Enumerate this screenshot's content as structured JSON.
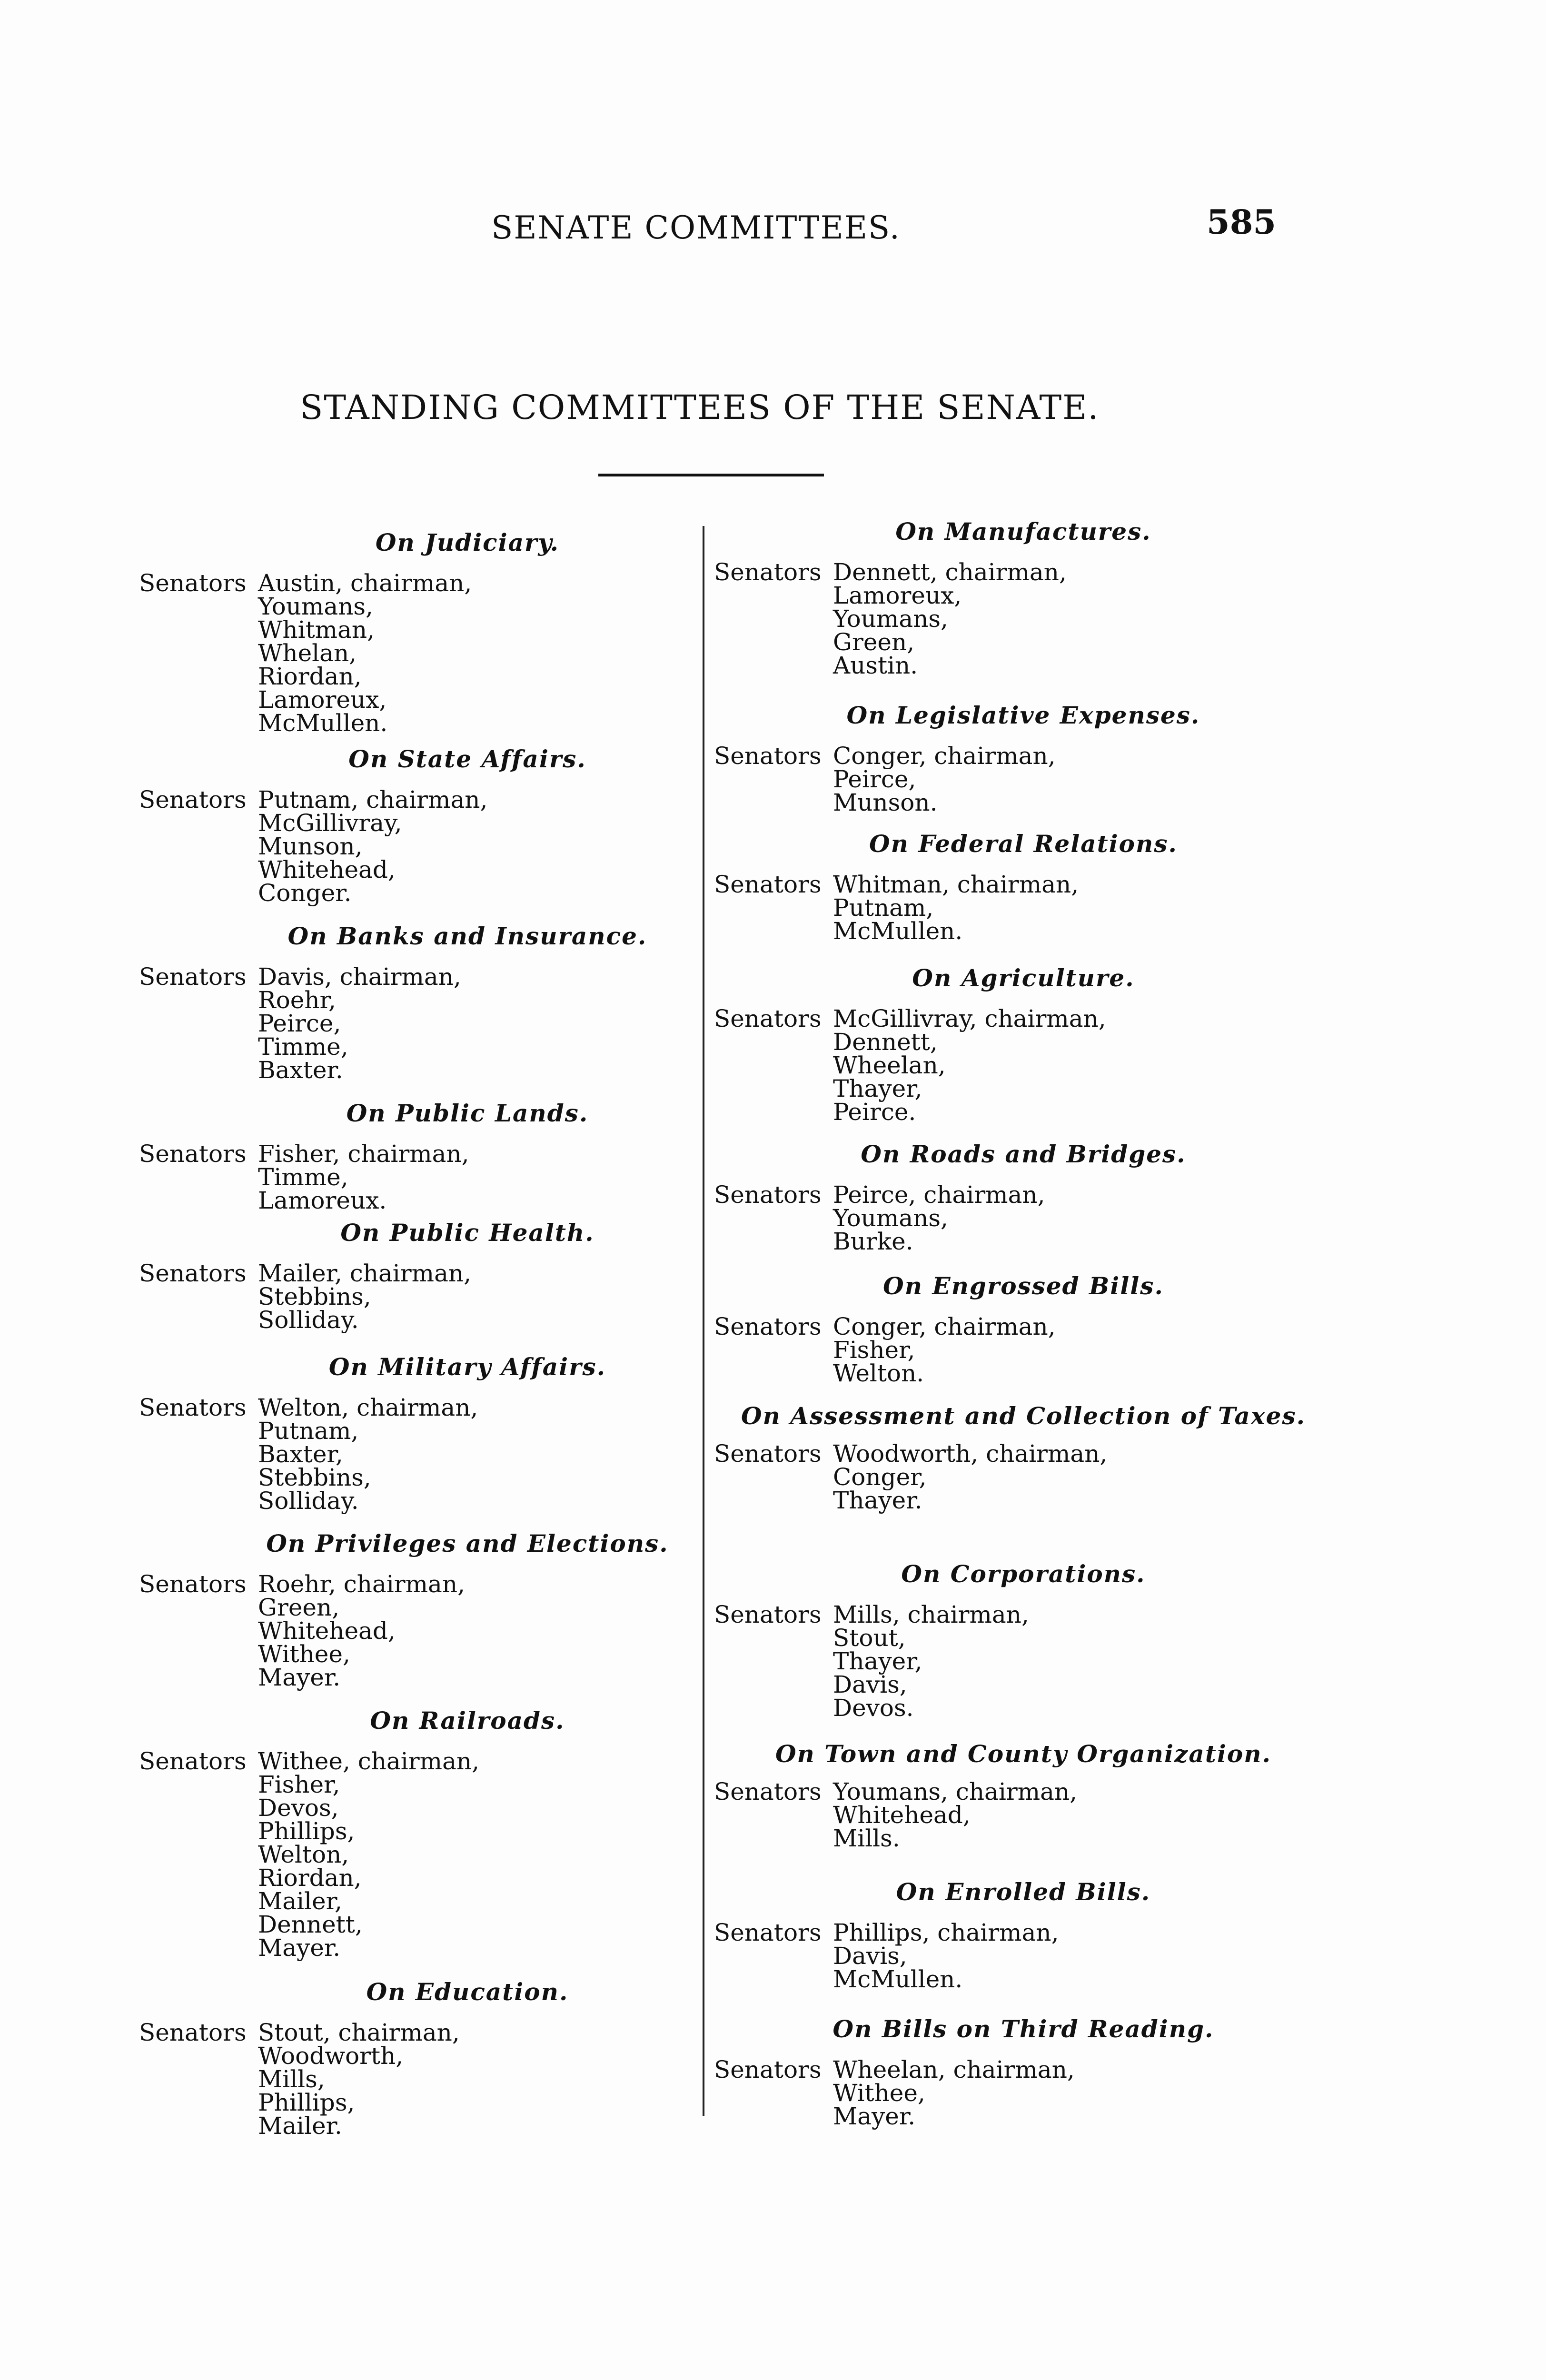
{
  "header": {
    "running_title": "SENATE COMMITTEES.",
    "page_number": "585"
  },
  "title": "STANDING COMMITTEES OF THE SENATE.",
  "senators_label": "Senators",
  "left_column": [
    {
      "heading": "On Judiciary.",
      "members": [
        "Austin, chairman,",
        "Youmans,",
        "Whitman,",
        "Whelan,",
        "Riordan,",
        "Lamoreux,",
        "McMullen."
      ]
    },
    {
      "heading": "On State Affairs.",
      "members": [
        "Putnam, chairman,",
        "McGillivray,",
        "Munson,",
        "Whitehead,",
        "Conger."
      ]
    },
    {
      "heading": "On Banks and Insurance.",
      "members": [
        "Davis, chairman,",
        "Roehr,",
        "Peirce,",
        "Timme,",
        "Baxter."
      ]
    },
    {
      "heading": "On Public Lands.",
      "members": [
        "Fisher, chairman,",
        "Timme,",
        "Lamoreux."
      ]
    },
    {
      "heading": "On Public Health.",
      "members": [
        "Mailer, chairman,",
        "Stebbins,",
        "Solliday."
      ]
    },
    {
      "heading": "On Military Affairs.",
      "members": [
        "Welton, chairman,",
        "Putnam,",
        "Baxter,",
        "Stebbins,",
        "Solliday."
      ]
    },
    {
      "heading": "On Privileges and Elections.",
      "members": [
        "Roehr, chairman,",
        "Green,",
        "Whitehead,",
        "Withee,",
        "Mayer."
      ]
    },
    {
      "heading": "On Railroads.",
      "members": [
        "Withee, chairman,",
        "Fisher,",
        "Devos,",
        "Phillips,",
        "Welton,",
        "Riordan,",
        "Mailer,",
        "Dennett,",
        "Mayer."
      ]
    },
    {
      "heading": "On Education.",
      "members": [
        "Stout, chairman,",
        "Woodworth,",
        "Mills,",
        "Phillips,",
        "Mailer."
      ]
    }
  ],
  "right_column": [
    {
      "heading": "On Manufactures.",
      "members": [
        "Dennett, chairman,",
        "Lamoreux,",
        "Youmans,",
        "Green,",
        "Austin."
      ]
    },
    {
      "heading": "On Legislative Expenses.",
      "members": [
        "Conger, chairman,",
        "Peirce,",
        "Munson."
      ]
    },
    {
      "heading": "On Federal Relations.",
      "members": [
        "Whitman, chairman,",
        "Putnam,",
        "McMullen."
      ]
    },
    {
      "heading": "On Agriculture.",
      "members": [
        "McGillivray, chairman,",
        "Dennett,",
        "Wheelan,",
        "Thayer,",
        "Peirce."
      ]
    },
    {
      "heading": "On Roads and Bridges.",
      "members": [
        "Peirce, chairman,",
        "Youmans,",
        "Burke."
      ]
    },
    {
      "heading": "On Engrossed Bills.",
      "members": [
        "Conger, chairman,",
        "Fisher,",
        "Welton."
      ]
    },
    {
      "heading": "On Assessment and Collection of Taxes.",
      "members": [
        "Woodworth, chairman,",
        "Conger,",
        "Thayer."
      ]
    },
    {
      "heading": "On Corporations.",
      "members": [
        "Mills, chairman,",
        "Stout,",
        "Thayer,",
        "Davis,",
        "Devos."
      ]
    },
    {
      "heading": "On Town and County Organization.",
      "members": [
        "Youmans, chairman,",
        "Whitehead,",
        "Mills."
      ]
    },
    {
      "heading": "On Enrolled Bills.",
      "members": [
        "Phillips, chairman,",
        "Davis,",
        "McMullen."
      ]
    },
    {
      "heading": "On Bills on Third Reading.",
      "members": [
        "Wheelan, chairman,",
        "Withee,",
        "Mayer."
      ]
    }
  ]
}
